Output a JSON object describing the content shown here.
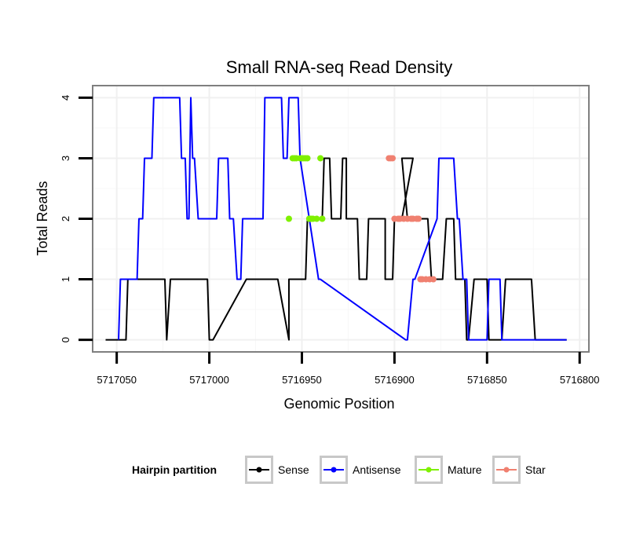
{
  "chart_data": {
    "type": "line",
    "title": "Small RNA-seq Read Density",
    "xlabel": "Genomic Position",
    "ylabel": "Total Reads",
    "xlim": [
      5717063,
      5716795
    ],
    "ylim": [
      -0.2,
      4.2
    ],
    "x_reversed": true,
    "x_ticks": [
      5717050,
      5717000,
      5716950,
      5716900,
      5716850,
      5716800
    ],
    "x_tick_labels": [
      "5717050",
      "5717000",
      "5716950",
      "5716900",
      "5716850",
      "5716800"
    ],
    "y_ticks": [
      0,
      1,
      2,
      3,
      4
    ],
    "y_tick_labels": [
      "0",
      "1",
      "2",
      "3",
      "4"
    ],
    "grid": true,
    "legend": {
      "title": "Hairpin partition",
      "position": "bottom",
      "entries": [
        "Sense",
        "Antisense",
        "Mature",
        "Star"
      ]
    },
    "series": [
      {
        "name": "Sense",
        "color": "#000000",
        "style": "line",
        "x": [
          5717056,
          5717045,
          5717044,
          5717024,
          5717023,
          5717021,
          5717001,
          5717000,
          5716998,
          5716980,
          5716977,
          5716963,
          5716957,
          5716957,
          5716953,
          5716948,
          5716947,
          5716939,
          5716938,
          5716937,
          5716935,
          5716934,
          5716929,
          5716928,
          5716926,
          5716926,
          5716925,
          5716920,
          5716919,
          5716915,
          5716914,
          5716908,
          5716905,
          5716905,
          5716901,
          5716900,
          5716896,
          5716890,
          5716896,
          5716893,
          5716892,
          5716882,
          5716880,
          5716874,
          5716872,
          5716868,
          5716867,
          5716862,
          5716861,
          5716860,
          5716857,
          5716855,
          5716852,
          5716850,
          5716849,
          5716842,
          5716840,
          5716826,
          5716824,
          5716807
        ],
        "y": [
          0,
          0,
          1,
          1,
          0,
          1,
          1,
          0,
          0,
          1,
          1,
          1,
          0,
          1,
          1,
          1,
          2,
          2,
          3,
          3,
          3,
          2,
          2,
          3,
          3,
          2,
          2,
          2,
          1,
          1,
          2,
          2,
          2,
          1,
          1,
          2,
          2,
          3,
          3,
          2,
          2,
          2,
          1,
          1,
          2,
          2,
          1,
          1,
          0,
          0,
          1,
          1,
          1,
          1,
          0,
          0,
          1,
          1,
          0,
          0
        ]
      },
      {
        "name": "Antisense",
        "color": "#0000ff",
        "style": "line",
        "x": [
          5717049,
          5717048,
          5717039,
          5717038,
          5717036,
          5717035,
          5717031,
          5717030,
          5717016,
          5717015,
          5717013,
          5717012,
          5717011,
          5717010,
          5717009,
          5717008,
          5717006,
          5716996,
          5716995,
          5716990,
          5716989,
          5716987,
          5716985,
          5716983,
          5716982,
          5716971,
          5716970,
          5716961,
          5716960,
          5716958,
          5716957,
          5716952,
          5716951,
          5716941,
          5716940,
          5716894,
          5716893,
          5716890,
          5716889,
          5716877,
          5716876,
          5716868,
          5716866,
          5716865,
          5716863,
          5716861,
          5716860,
          5716850,
          5716849,
          5716843,
          5716842,
          5716830,
          5716829,
          5716807
        ],
        "y": [
          0,
          1,
          1,
          2,
          2,
          3,
          3,
          4,
          4,
          3,
          3,
          2,
          2,
          4,
          3,
          3,
          2,
          2,
          3,
          3,
          2,
          2,
          1,
          1,
          2,
          2,
          4,
          4,
          3,
          3,
          4,
          4,
          3,
          1,
          1,
          0,
          0,
          1,
          1,
          2,
          3,
          3,
          2,
          2,
          1,
          1,
          0,
          0,
          1,
          1,
          0,
          0,
          0,
          0
        ]
      },
      {
        "name": "Mature",
        "color": "#7ff000",
        "style": "points",
        "x": [
          5716957,
          5716955,
          5716954,
          5716953,
          5716951,
          5716950,
          5716949,
          5716948,
          5716947,
          5716946,
          5716946,
          5716945,
          5716944,
          5716942,
          5716940,
          5716939
        ],
        "y": [
          2,
          3,
          3,
          3,
          3,
          3,
          3,
          3,
          3,
          2,
          2,
          2,
          2,
          2,
          3,
          2
        ]
      },
      {
        "name": "Star",
        "color": "#f08070",
        "style": "points",
        "x": [
          5716903,
          5716902,
          5716901,
          5716900,
          5716898,
          5716897,
          5716895,
          5716893,
          5716891,
          5716890,
          5716888,
          5716887,
          5716886,
          5716885,
          5716883,
          5716881,
          5716879
        ],
        "y": [
          3,
          3,
          3,
          2,
          2,
          2,
          2,
          2,
          2,
          2,
          2,
          2,
          1,
          1,
          1,
          1,
          1
        ]
      }
    ]
  }
}
